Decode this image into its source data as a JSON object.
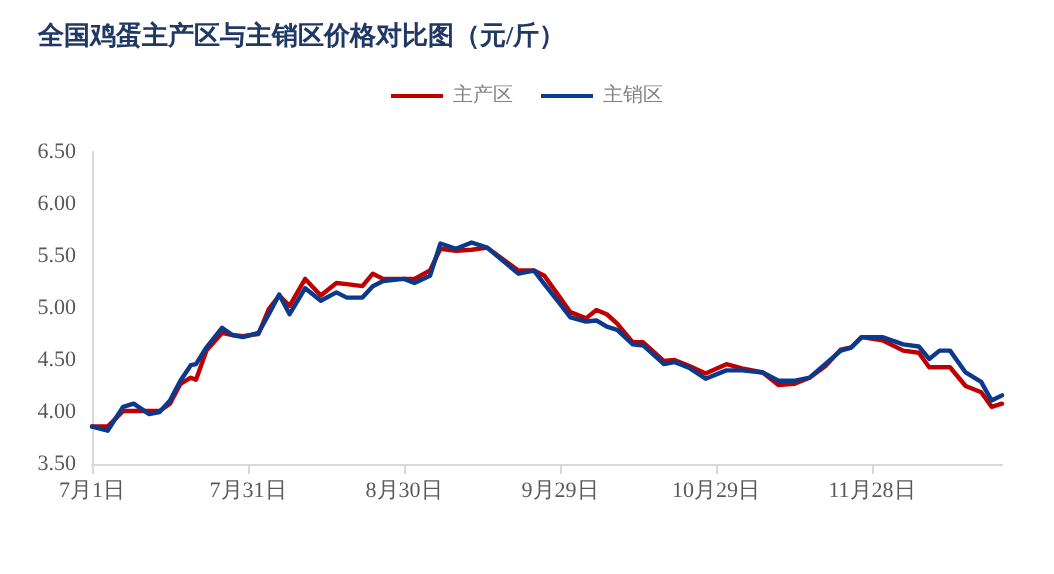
{
  "chart_data": {
    "type": "line",
    "title": "全国鸡蛋主产区与主销区价格对比图（元/斤）",
    "x": [
      "--07-01",
      "--07-04",
      "--07-07",
      "--07-09",
      "--07-12",
      "--07-14",
      "--07-16",
      "--07-18",
      "--07-20",
      "--07-21",
      "--07-23",
      "--07-26",
      "--07-28",
      "--07-30",
      "--08-02",
      "--08-04",
      "--08-06",
      "--08-08",
      "--08-11",
      "--08-14",
      "--08-17",
      "--08-19",
      "--08-22",
      "--08-24",
      "--08-26",
      "--08-30",
      "--09-01",
      "--09-04",
      "--09-06",
      "--09-09",
      "--09-12",
      "--09-15",
      "--09-21",
      "--09-24",
      "--09-26",
      "--09-29",
      "--10-01",
      "--10-04",
      "--10-06",
      "--10-08",
      "--10-10",
      "--10-13",
      "--10-15",
      "--10-19",
      "--10-21",
      "--10-24",
      "--10-27",
      "--10-31",
      "--11-03",
      "--11-07",
      "--11-10",
      "--11-13",
      "--11-16",
      "--11-19",
      "--11-22",
      "--11-24",
      "--11-26",
      "--11-30",
      "--12-04",
      "--12-07",
      "--12-09",
      "--12-11",
      "--12-13",
      "--12-16",
      "--12-19",
      "--12-21",
      "--12-23"
    ],
    "series": [
      {
        "name": "主产区",
        "color": "#c00000",
        "values": [
          3.86,
          3.86,
          4.01,
          4.01,
          4.01,
          4.01,
          4.08,
          4.27,
          4.33,
          4.31,
          4.59,
          4.76,
          4.74,
          4.73,
          4.75,
          4.99,
          5.12,
          5.02,
          5.28,
          5.12,
          5.24,
          5.23,
          5.21,
          5.33,
          5.28,
          5.28,
          5.28,
          5.36,
          5.57,
          5.55,
          5.56,
          5.58,
          5.36,
          5.36,
          5.31,
          5.1,
          4.96,
          4.9,
          4.98,
          4.94,
          4.85,
          4.67,
          4.67,
          4.49,
          4.5,
          4.44,
          4.37,
          4.46,
          4.42,
          4.38,
          4.26,
          4.27,
          4.33,
          4.44,
          4.6,
          4.62,
          4.72,
          4.69,
          4.59,
          4.57,
          4.43,
          4.43,
          4.43,
          4.25,
          4.19,
          4.05,
          4.08
        ]
      },
      {
        "name": "主销区",
        "color": "#0b3a8c",
        "values": [
          3.86,
          3.82,
          4.05,
          4.08,
          3.98,
          4.0,
          4.11,
          4.3,
          4.45,
          4.46,
          4.62,
          4.81,
          4.74,
          4.72,
          4.76,
          4.94,
          5.13,
          4.94,
          5.19,
          5.07,
          5.15,
          5.1,
          5.1,
          5.21,
          5.26,
          5.28,
          5.24,
          5.31,
          5.62,
          5.57,
          5.63,
          5.58,
          5.33,
          5.36,
          5.23,
          5.04,
          4.91,
          4.87,
          4.88,
          4.82,
          4.79,
          4.65,
          4.64,
          4.46,
          4.48,
          4.42,
          4.32,
          4.4,
          4.4,
          4.38,
          4.3,
          4.3,
          4.33,
          4.46,
          4.59,
          4.62,
          4.72,
          4.72,
          4.65,
          4.63,
          4.51,
          4.59,
          4.59,
          4.38,
          4.29,
          4.11,
          4.16
        ]
      }
    ],
    "xlim": [
      "--07-01",
      "--12-23"
    ],
    "xticks": [
      {
        "value": "--07-01",
        "label": "7月1日"
      },
      {
        "value": "--07-31",
        "label": "7月31日"
      },
      {
        "value": "--08-30",
        "label": "8月30日"
      },
      {
        "value": "--09-29",
        "label": "9月29日"
      },
      {
        "value": "--10-29",
        "label": "10月29日"
      },
      {
        "value": "--11-28",
        "label": "11月28日"
      }
    ],
    "ylim": [
      3.5,
      6.5
    ],
    "yticks": [
      {
        "value": 3.5,
        "label": "3.50"
      },
      {
        "value": 4,
        "label": "4.00"
      },
      {
        "value": 4.5,
        "label": "4.50"
      },
      {
        "value": 5,
        "label": "5.00"
      },
      {
        "value": 5.5,
        "label": "5.50"
      },
      {
        "value": 6,
        "label": "6.00"
      },
      {
        "value": 6.5,
        "label": "6.50"
      }
    ],
    "grid": false,
    "legend": "top",
    "marker": "none",
    "line_style": "solid"
  }
}
